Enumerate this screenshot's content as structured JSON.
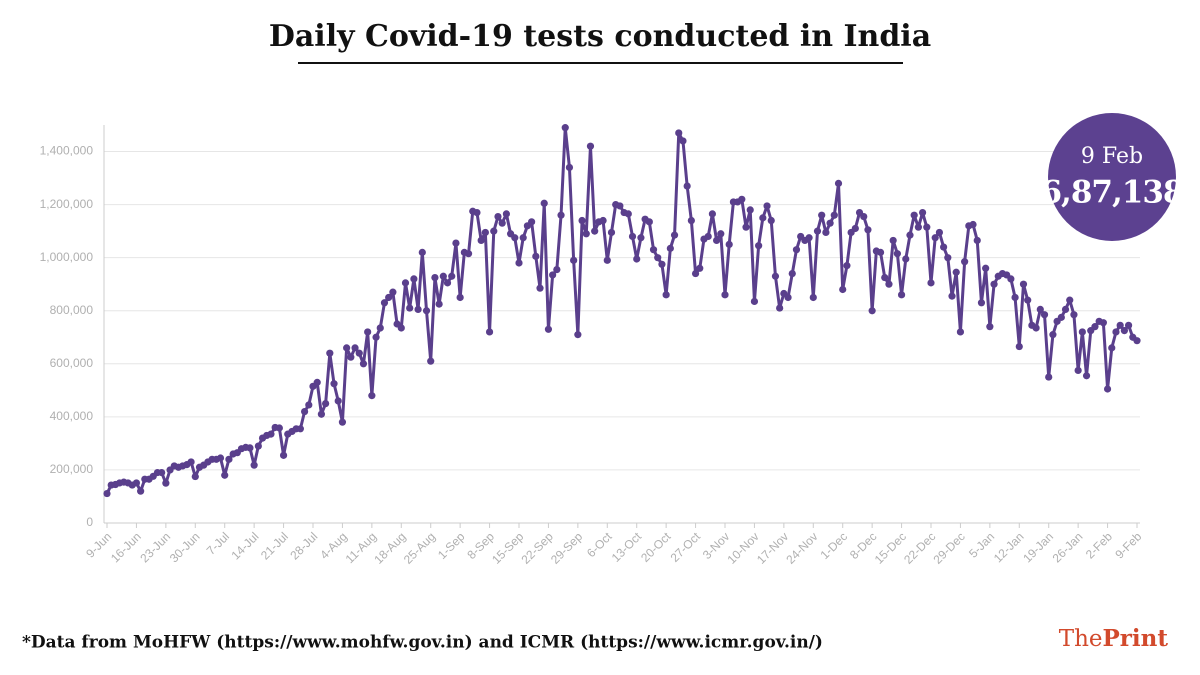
{
  "chart_data": {
    "type": "line",
    "title": "Daily Covid-19 tests conducted in India",
    "categories": [
      "9-Jun",
      null,
      null,
      null,
      null,
      null,
      null,
      "16-Jun",
      null,
      null,
      null,
      null,
      null,
      null,
      "23-Jun",
      null,
      null,
      null,
      null,
      null,
      null,
      "30-Jun",
      null,
      null,
      null,
      null,
      null,
      null,
      "7-Jul",
      null,
      null,
      null,
      null,
      null,
      null,
      "14-Jul",
      null,
      null,
      null,
      null,
      null,
      null,
      "21-Jul",
      null,
      null,
      null,
      null,
      null,
      null,
      "28-Jul",
      null,
      null,
      null,
      null,
      null,
      null,
      "4-Aug",
      null,
      null,
      null,
      null,
      null,
      null,
      "11-Aug",
      null,
      null,
      null,
      null,
      null,
      null,
      "18-Aug",
      null,
      null,
      null,
      null,
      null,
      null,
      "25-Aug",
      null,
      null,
      null,
      null,
      null,
      null,
      "1-Sep",
      null,
      null,
      null,
      null,
      null,
      null,
      "8-Sep",
      null,
      null,
      null,
      null,
      null,
      null,
      "15-Sep",
      null,
      null,
      null,
      null,
      null,
      null,
      "22-Sep",
      null,
      null,
      null,
      null,
      null,
      null,
      "29-Sep",
      null,
      null,
      null,
      null,
      null,
      null,
      "6-Oct",
      null,
      null,
      null,
      null,
      null,
      null,
      "13-Oct",
      null,
      null,
      null,
      null,
      null,
      null,
      "20-Oct",
      null,
      null,
      null,
      null,
      null,
      null,
      "27-Oct",
      null,
      null,
      null,
      null,
      null,
      null,
      "3-Nov",
      null,
      null,
      null,
      null,
      null,
      null,
      "10-Nov",
      null,
      null,
      null,
      null,
      null,
      null,
      "17-Nov",
      null,
      null,
      null,
      null,
      null,
      null,
      "24-Nov",
      null,
      null,
      null,
      null,
      null,
      null,
      "1-Dec",
      null,
      null,
      null,
      null,
      null,
      null,
      "8-Dec",
      null,
      null,
      null,
      null,
      null,
      null,
      "15-Dec",
      null,
      null,
      null,
      null,
      null,
      null,
      "22-Dec",
      null,
      null,
      null,
      null,
      null,
      null,
      "29-Dec",
      null,
      null,
      null,
      null,
      null,
      null,
      "5-Jan",
      null,
      null,
      null,
      null,
      null,
      null,
      "12-Jan",
      null,
      null,
      null,
      null,
      null,
      null,
      "19-Jan",
      null,
      null,
      null,
      null,
      null,
      null,
      "26-Jan",
      null,
      null,
      null,
      null,
      null,
      null,
      "2-Feb",
      null,
      null,
      null,
      null,
      null,
      null,
      "9-Feb"
    ],
    "values": [
      111000,
      143000,
      145000,
      151000,
      154000,
      151000,
      143000,
      151000,
      120000,
      165000,
      165000,
      176000,
      190000,
      190000,
      150000,
      200000,
      215000,
      210000,
      215000,
      220000,
      230000,
      175000,
      210000,
      218000,
      230000,
      240000,
      240000,
      245000,
      180000,
      240000,
      260000,
      265000,
      280000,
      285000,
      283000,
      218000,
      290000,
      320000,
      330000,
      335000,
      360000,
      358000,
      255000,
      335000,
      345000,
      355000,
      355000,
      420000,
      445000,
      515000,
      530000,
      410000,
      450000,
      640000,
      525000,
      460000,
      380000,
      660000,
      625000,
      660000,
      640000,
      600000,
      720000,
      480000,
      700000,
      735000,
      830000,
      850000,
      870000,
      750000,
      735000,
      905000,
      810000,
      920000,
      805000,
      1020000,
      800000,
      610000,
      925000,
      825000,
      930000,
      905000,
      930000,
      1055000,
      850000,
      1020000,
      1015000,
      1175000,
      1170000,
      1065000,
      1095000,
      720000,
      1100000,
      1155000,
      1130000,
      1165000,
      1090000,
      1075000,
      980000,
      1075000,
      1120000,
      1135000,
      1005000,
      885000,
      1205000,
      730000,
      935000,
      955000,
      1160000,
      1490000,
      1340000,
      990000,
      710000,
      1140000,
      1090000,
      1420000,
      1100000,
      1135000,
      1140000,
      990000,
      1095000,
      1200000,
      1195000,
      1170000,
      1165000,
      1080000,
      995000,
      1075000,
      1145000,
      1135000,
      1030000,
      1000000,
      975000,
      860000,
      1035000,
      1085000,
      1470000,
      1440000,
      1270000,
      1140000,
      940000,
      960000,
      1070000,
      1080000,
      1165000,
      1065000,
      1090000,
      860000,
      1050000,
      1210000,
      1210000,
      1220000,
      1115000,
      1180000,
      835000,
      1045000,
      1150000,
      1195000,
      1140000,
      930000,
      810000,
      865000,
      850000,
      940000,
      1030000,
      1080000,
      1065000,
      1075000,
      850000,
      1100000,
      1160000,
      1095000,
      1130000,
      1160000,
      1280000,
      880000,
      970000,
      1095000,
      1110000,
      1170000,
      1155000,
      1105000,
      800000,
      1025000,
      1020000,
      925000,
      900000,
      1065000,
      1015000,
      860000,
      995000,
      1085000,
      1160000,
      1115000,
      1170000,
      1115000,
      905000,
      1075000,
      1095000,
      1040000,
      1000000,
      855000,
      945000,
      720000,
      985000,
      1120000,
      1125000,
      1065000,
      830000,
      960000,
      740000,
      900000,
      930000,
      940000,
      935000,
      920000,
      850000,
      665000,
      900000,
      840000,
      745000,
      735000,
      805000,
      785000,
      550000,
      710000,
      760000,
      775000,
      805000,
      840000,
      785000,
      575000,
      720000,
      555000,
      725000,
      740000,
      760000,
      755000,
      505000,
      660000,
      720000,
      745000,
      725000,
      745000,
      700000,
      687138
    ],
    "color": "#5a3f8c",
    "ylim": [
      0,
      1500000
    ],
    "yticks": [
      0,
      {
        "value": 200000,
        "label": "200,000"
      },
      {
        "value": 400000,
        "label": "400,000"
      },
      {
        "value": 600000,
        "label": "600,000"
      },
      {
        "value": 800000,
        "label": "800,000"
      },
      {
        "value": 1000000,
        "label": "1,000,000"
      },
      {
        "value": 1200000,
        "label": "1,200,000"
      },
      {
        "value": 1400000,
        "label": "1,400,000"
      }
    ],
    "grid": true,
    "callout": {
      "label": "9 Feb",
      "value_label": "6,87,138",
      "color": "#5c4190"
    },
    "footnote": "*Data from MoHFW (https://www.mohfw.gov.in) and ICMR (https://www.icmr.gov.in/)",
    "brand": {
      "prefix": "The",
      "name": "Print"
    }
  }
}
